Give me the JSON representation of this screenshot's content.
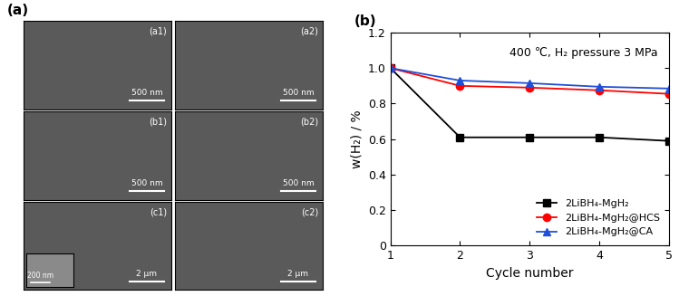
{
  "micrographs": {
    "label": "(a)",
    "panels": [
      {
        "label": "(a1)",
        "scale_bar": "500 nm"
      },
      {
        "label": "(a2)",
        "scale_bar": "500 nm"
      },
      {
        "label": "(b1)",
        "scale_bar": "500 nm"
      },
      {
        "label": "(b2)",
        "scale_bar": "500 nm"
      },
      {
        "label": "(c1)",
        "scale_bar": "2 μm",
        "inset_scale_bar": "200 nm"
      },
      {
        "label": "(c2)",
        "scale_bar": "2 μm"
      }
    ]
  },
  "chart_data": {
    "type": "line",
    "title": "(b)",
    "x_label": "Cycle number",
    "y_label": "w(H₂) / %",
    "annotation": "400 ℃, H₂ pressure 3 MPa",
    "x": [
      1,
      2,
      3,
      4,
      5
    ],
    "series": [
      {
        "name": "2LiBH₄-MgH₂",
        "color": "#000000",
        "marker": "square",
        "values": [
          1.0,
          0.61,
          0.61,
          0.61,
          0.59
        ]
      },
      {
        "name": "2LiBH₄-MgH₂@HCS",
        "color": "#ff0000",
        "marker": "circle",
        "values": [
          1.0,
          0.9,
          0.89,
          0.875,
          0.855
        ]
      },
      {
        "name": "2LiBH₄-MgH₂@CA",
        "color": "#1f4fd8",
        "marker": "triangle",
        "values": [
          1.0,
          0.93,
          0.915,
          0.895,
          0.885
        ]
      }
    ],
    "xlim": [
      1,
      5
    ],
    "xticks": [
      1,
      2,
      3,
      4,
      5
    ],
    "ylim": [
      0,
      1.2
    ],
    "yticks": [
      0,
      0.2,
      0.4,
      0.6,
      0.8,
      1.0,
      1.2
    ],
    "legend": "lower right",
    "grid": false
  }
}
